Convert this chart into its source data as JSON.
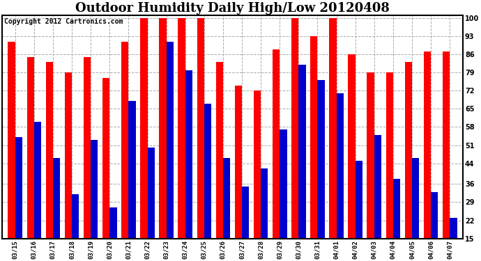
{
  "title": "Outdoor Humidity Daily High/Low 20120408",
  "copyright": "Copyright 2012 Cartronics.com",
  "dates": [
    "03/15",
    "03/16",
    "03/17",
    "03/18",
    "03/19",
    "03/20",
    "03/21",
    "03/22",
    "03/23",
    "03/24",
    "03/25",
    "03/26",
    "03/27",
    "03/28",
    "03/29",
    "03/30",
    "03/31",
    "04/01",
    "04/02",
    "04/03",
    "04/04",
    "04/05",
    "04/06",
    "04/07"
  ],
  "highs": [
    91,
    85,
    83,
    79,
    85,
    77,
    91,
    100,
    100,
    100,
    100,
    83,
    74,
    72,
    88,
    100,
    93,
    100,
    86,
    79,
    79,
    83,
    87,
    87
  ],
  "lows": [
    54,
    60,
    46,
    32,
    53,
    27,
    68,
    50,
    91,
    80,
    67,
    46,
    35,
    42,
    57,
    82,
    76,
    71,
    45,
    55,
    38,
    46,
    33,
    23
  ],
  "high_color": "#ff0000",
  "low_color": "#0000cc",
  "bg_color": "#ffffff",
  "plot_bg_color": "#ffffff",
  "grid_color": "#aaaaaa",
  "ymin": 15,
  "ymax": 101,
  "yticks": [
    15,
    22,
    29,
    36,
    44,
    51,
    58,
    65,
    72,
    79,
    86,
    93,
    100
  ],
  "title_fontsize": 13,
  "copyright_fontsize": 7,
  "bar_width": 0.38
}
